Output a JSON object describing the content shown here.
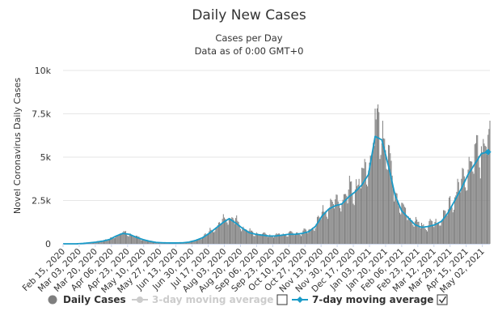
{
  "chart_data": {
    "type": "bar",
    "title": "Daily New Cases",
    "subtitle_lines": [
      "Cases per Day",
      "Data as of 0:00 GMT+0"
    ],
    "ylabel": "Novel Coronavirus Daily Cases",
    "xlabel": "",
    "ylim": [
      0,
      10000
    ],
    "yticks": [
      "0",
      "2.5k",
      "5k",
      "7.5k",
      "10k"
    ],
    "ytick_values": [
      0,
      2500,
      5000,
      7500,
      10000
    ],
    "grid": true,
    "x_start": "Feb 15, 2020",
    "x_end": "May 10, 2021",
    "xtick_labels": [
      "Feb 15, 2020",
      "Mar 03, 2020",
      "Mar 20, 2020",
      "Apr 06, 2020",
      "Apr 23, 2020",
      "May 10, 2020",
      "May 27, 2020",
      "Jun 13, 2020",
      "Jun 30, 2020",
      "Jul 17, 2020",
      "Aug 03, 2020",
      "Aug 20, 2020",
      "Sep 06, 2020",
      "Sep 23, 2020",
      "Oct 10, 2020",
      "Oct 27, 2020",
      "Nov 13, 2020",
      "Nov 30, 2020",
      "Dec 17, 2020",
      "Jan 03, 2021",
      "Jan 20, 2021",
      "Feb 06, 2021",
      "Feb 23, 2021",
      "Mar 12, 2021",
      "Mar 29, 2021",
      "Apr 15, 2021",
      "May 02, 2021"
    ],
    "weekly_anchor_dates": [
      "Feb 15, 2020",
      "Feb 22, 2020",
      "Feb 29, 2020",
      "Mar 07, 2020",
      "Mar 14, 2020",
      "Mar 21, 2020",
      "Mar 28, 2020",
      "Apr 04, 2020",
      "Apr 11, 2020",
      "Apr 18, 2020",
      "Apr 25, 2020",
      "May 02, 2020",
      "May 09, 2020",
      "May 16, 2020",
      "May 23, 2020",
      "May 30, 2020",
      "Jun 06, 2020",
      "Jun 13, 2020",
      "Jun 20, 2020",
      "Jun 27, 2020",
      "Jul 04, 2020",
      "Jul 11, 2020",
      "Jul 18, 2020",
      "Jul 25, 2020",
      "Aug 01, 2020",
      "Aug 08, 2020",
      "Aug 15, 2020",
      "Aug 22, 2020",
      "Aug 29, 2020",
      "Sep 05, 2020",
      "Sep 12, 2020",
      "Sep 19, 2020",
      "Sep 26, 2020",
      "Oct 03, 2020",
      "Oct 10, 2020",
      "Oct 17, 2020",
      "Oct 24, 2020",
      "Oct 31, 2020",
      "Nov 07, 2020",
      "Nov 14, 2020",
      "Nov 21, 2020",
      "Nov 28, 2020",
      "Dec 05, 2020",
      "Dec 12, 2020",
      "Dec 19, 2020",
      "Dec 26, 2020",
      "Jan 02, 2021",
      "Jan 09, 2021",
      "Jan 16, 2021",
      "Jan 23, 2021",
      "Jan 30, 2021",
      "Feb 06, 2021",
      "Feb 13, 2021",
      "Feb 20, 2021",
      "Feb 27, 2021",
      "Mar 06, 2021",
      "Mar 13, 2021",
      "Mar 20, 2021",
      "Mar 27, 2021",
      "Apr 03, 2021",
      "Apr 10, 2021",
      "Apr 17, 2021",
      "Apr 24, 2021",
      "May 01, 2021",
      "May 08, 2021"
    ],
    "weekly_avg_values": [
      0,
      0,
      0,
      20,
      60,
      100,
      160,
      250,
      450,
      600,
      550,
      380,
      250,
      150,
      80,
      60,
      50,
      50,
      60,
      100,
      200,
      350,
      600,
      900,
      1200,
      1450,
      1200,
      900,
      650,
      550,
      500,
      450,
      450,
      500,
      550,
      550,
      600,
      700,
      1000,
      1600,
      2000,
      2200,
      2300,
      2700,
      3000,
      3400,
      4000,
      6200,
      6000,
      4500,
      2800,
      1900,
      1500,
      1100,
      950,
      1000,
      1100,
      1300,
      1800,
      2500,
      3200,
      4000,
      4600,
      5200,
      5300
    ],
    "series": [
      {
        "name": "Daily Cases",
        "color": "#7f7f7f",
        "style": "bars"
      },
      {
        "name": "3-day moving average",
        "color": "#cccccc",
        "style": "line",
        "visible": false
      },
      {
        "name": "7-day moving average",
        "color": "#1a9bc8",
        "style": "line",
        "visible": true
      }
    ],
    "legend_position": "bottom",
    "peak_daily": 7800
  },
  "legend": {
    "items": [
      {
        "label": "Daily Cases",
        "color": "#7f7f7f",
        "visible": true
      },
      {
        "label": "3-day moving average",
        "color": "#cccccc",
        "visible": false
      },
      {
        "label": "7-day moving average",
        "color": "#1a9bc8",
        "visible": true
      }
    ],
    "checkbox_3day_checked": false,
    "checkbox_7day_checked": true
  }
}
